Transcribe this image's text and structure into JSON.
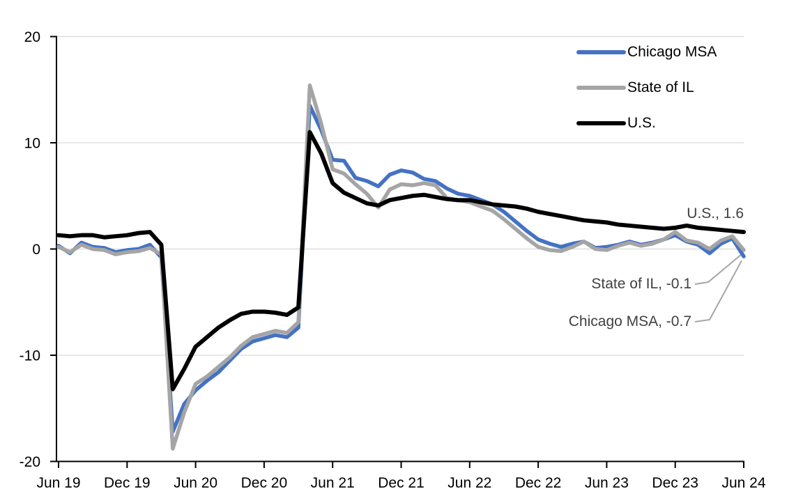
{
  "chart_data": {
    "type": "line",
    "x_axis": {
      "frequency": "monthly",
      "range_start": "Jun 19",
      "range_end": "Jun 24",
      "ticks": [
        {
          "index": 0,
          "label": "Jun 19"
        },
        {
          "index": 6,
          "label": "Dec 19"
        },
        {
          "index": 12,
          "label": "Jun 20"
        },
        {
          "index": 18,
          "label": "Dec 20"
        },
        {
          "index": 24,
          "label": "Jun 21"
        },
        {
          "index": 30,
          "label": "Dec 21"
        },
        {
          "index": 36,
          "label": "Jun 22"
        },
        {
          "index": 42,
          "label": "Dec 22"
        },
        {
          "index": 48,
          "label": "Jun 23"
        },
        {
          "index": 54,
          "label": "Dec 23"
        },
        {
          "index": 60,
          "label": "Jun 24"
        }
      ]
    },
    "y_axis": {
      "min": -20,
      "max": 20,
      "ticks": [
        {
          "value": 20,
          "label": "20"
        },
        {
          "value": 10,
          "label": "10"
        },
        {
          "value": 0,
          "label": "0"
        },
        {
          "value": -10,
          "label": "-10"
        },
        {
          "value": -20,
          "label": "-20"
        }
      ]
    },
    "grid": "horizontal",
    "legend_position": "top-right",
    "series": [
      {
        "name": "Chicago MSA",
        "color": "#4472C4",
        "values": [
          0.3,
          -0.4,
          0.6,
          0.2,
          0.1,
          -0.3,
          -0.1,
          0.0,
          0.4,
          -0.8,
          -17.2,
          -14.6,
          -13.3,
          -12.4,
          -11.6,
          -10.5,
          -9.4,
          -8.7,
          -8.4,
          -8.1,
          -8.3,
          -7.4,
          13.5,
          11.2,
          8.4,
          8.3,
          6.7,
          6.4,
          5.9,
          7.0,
          7.4,
          7.2,
          6.6,
          6.4,
          5.7,
          5.2,
          5.0,
          4.6,
          4.2,
          3.5,
          2.6,
          1.7,
          0.9,
          0.5,
          0.2,
          0.5,
          0.7,
          0.1,
          0.2,
          0.4,
          0.7,
          0.4,
          0.6,
          0.9,
          1.3,
          0.7,
          0.4,
          -0.4,
          0.5,
          1.0,
          -0.7
        ]
      },
      {
        "name": "State of IL",
        "color": "#A5A5A5",
        "values": [
          0.2,
          -0.3,
          0.4,
          0.0,
          -0.1,
          -0.5,
          -0.3,
          -0.2,
          0.1,
          -0.5,
          -18.8,
          -15.4,
          -12.7,
          -12.0,
          -11.1,
          -10.2,
          -9.1,
          -8.3,
          -8.0,
          -7.7,
          -7.9,
          -6.9,
          15.4,
          11.8,
          7.5,
          7.1,
          6.1,
          5.2,
          3.9,
          5.6,
          6.1,
          6.0,
          6.2,
          6.0,
          4.8,
          4.6,
          4.4,
          4.0,
          3.6,
          2.8,
          1.9,
          1.0,
          0.2,
          -0.1,
          -0.2,
          0.2,
          0.7,
          0.0,
          -0.1,
          0.3,
          0.6,
          0.3,
          0.5,
          0.9,
          1.6,
          0.8,
          0.6,
          0.0,
          0.8,
          1.2,
          -0.1
        ]
      },
      {
        "name": "U.S.",
        "color": "#000000",
        "values": [
          1.3,
          1.2,
          1.3,
          1.3,
          1.1,
          1.2,
          1.3,
          1.5,
          1.6,
          0.4,
          -13.2,
          -11.3,
          -9.2,
          -8.3,
          -7.4,
          -6.7,
          -6.1,
          -5.9,
          -5.9,
          -6.0,
          -6.2,
          -5.5,
          11.0,
          9.0,
          6.2,
          5.3,
          4.8,
          4.3,
          4.1,
          4.6,
          4.8,
          5.0,
          5.1,
          4.9,
          4.7,
          4.6,
          4.6,
          4.4,
          4.2,
          4.1,
          4.0,
          3.8,
          3.5,
          3.3,
          3.1,
          2.9,
          2.7,
          2.6,
          2.5,
          2.3,
          2.2,
          2.1,
          2.0,
          1.9,
          2.0,
          2.2,
          2.0,
          1.9,
          1.8,
          1.7,
          1.6
        ]
      }
    ],
    "annotations": [
      {
        "text": "U.S., 1.6",
        "series": "U.S."
      },
      {
        "text": "State of IL, -0.1",
        "series": "State of IL"
      },
      {
        "text": "Chicago MSA, -0.7",
        "series": "Chicago MSA"
      }
    ]
  }
}
